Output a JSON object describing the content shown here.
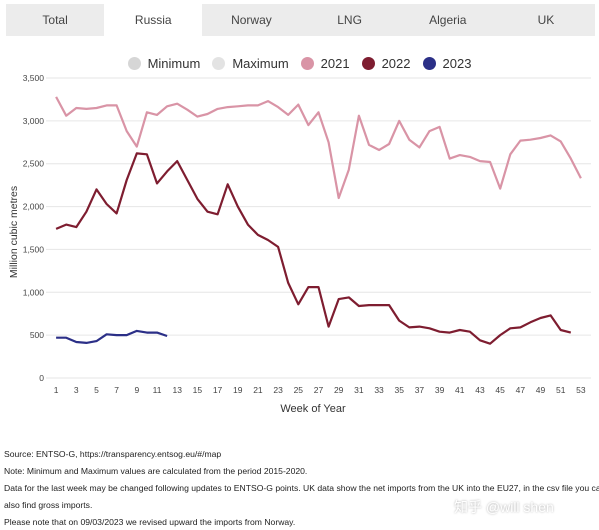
{
  "tabs": [
    {
      "label": "Total",
      "active": false
    },
    {
      "label": "Russia",
      "active": true
    },
    {
      "label": "Norway",
      "active": false
    },
    {
      "label": "LNG",
      "active": false
    },
    {
      "label": "Algeria",
      "active": false
    },
    {
      "label": "UK",
      "active": false
    }
  ],
  "legend": [
    {
      "label": "Minimum",
      "color": "#d6d6d6"
    },
    {
      "label": "Maximum",
      "color": "#e3e3e3"
    },
    {
      "label": "2021",
      "color": "#d994a6"
    },
    {
      "label": "2022",
      "color": "#7e1d30"
    },
    {
      "label": "2023",
      "color": "#2b2f87"
    }
  ],
  "chart_data": {
    "type": "line",
    "xlabel": "Week of Year",
    "ylabel": "Million cubic metres",
    "ylim": [
      0,
      3500
    ],
    "xlim": [
      0,
      54
    ],
    "y_ticks": [
      0,
      500,
      1000,
      1500,
      2000,
      2500,
      3000,
      3500
    ],
    "y_tick_labels": [
      "0",
      "500",
      "1,000",
      "1,500",
      "2,000",
      "2,500",
      "3,000",
      "3,500"
    ],
    "x_ticks": [
      1,
      3,
      5,
      7,
      9,
      11,
      13,
      15,
      17,
      19,
      21,
      23,
      25,
      27,
      29,
      31,
      33,
      35,
      37,
      39,
      41,
      43,
      45,
      47,
      49,
      51,
      53
    ],
    "grid": true,
    "series": [
      {
        "name": "2021",
        "color": "#d994a6",
        "x": [
          1,
          2,
          3,
          4,
          5,
          6,
          7,
          8,
          9,
          10,
          11,
          12,
          13,
          14,
          15,
          16,
          17,
          18,
          19,
          20,
          21,
          22,
          23,
          24,
          25,
          26,
          27,
          28,
          29,
          30,
          31,
          32,
          33,
          34,
          35,
          36,
          37,
          38,
          39,
          40,
          41,
          42,
          43,
          44,
          45,
          46,
          47,
          48,
          49,
          50,
          51,
          52,
          53
        ],
        "values": [
          3280,
          3060,
          3150,
          3140,
          3150,
          3180,
          3180,
          2880,
          2700,
          3100,
          3070,
          3170,
          3200,
          3130,
          3050,
          3080,
          3140,
          3160,
          3170,
          3180,
          3180,
          3230,
          3160,
          3070,
          3190,
          2950,
          3100,
          2750,
          2100,
          2430,
          3060,
          2720,
          2660,
          2730,
          3000,
          2780,
          2690,
          2880,
          2930,
          2560,
          2600,
          2580,
          2530,
          2520,
          2210,
          2610,
          2770,
          2780,
          2800,
          2830,
          2760,
          2560,
          2330
        ]
      },
      {
        "name": "2022",
        "color": "#7e1d30",
        "x": [
          1,
          2,
          3,
          4,
          5,
          6,
          7,
          8,
          9,
          10,
          11,
          12,
          13,
          14,
          15,
          16,
          17,
          18,
          19,
          20,
          21,
          22,
          23,
          24,
          25,
          26,
          27,
          28,
          29,
          30,
          31,
          32,
          33,
          34,
          35,
          36,
          37,
          38,
          39,
          40,
          41,
          42,
          43,
          44,
          45,
          46,
          47,
          48,
          49,
          50,
          51,
          52
        ],
        "values": [
          1740,
          1790,
          1760,
          1940,
          2200,
          2030,
          1920,
          2310,
          2620,
          2610,
          2270,
          2410,
          2530,
          2310,
          2090,
          1940,
          1910,
          2260,
          2000,
          1790,
          1670,
          1610,
          1530,
          1110,
          860,
          1060,
          1060,
          600,
          920,
          940,
          840,
          850,
          850,
          850,
          670,
          590,
          600,
          580,
          540,
          530,
          560,
          540,
          440,
          400,
          500,
          580,
          590,
          650,
          700,
          730,
          560,
          530
        ]
      },
      {
        "name": "2023",
        "color": "#2b2f87",
        "x": [
          1,
          2,
          3,
          4,
          5,
          6,
          7,
          8,
          9,
          10,
          11,
          12
        ],
        "values": [
          470,
          470,
          420,
          410,
          430,
          510,
          500,
          500,
          550,
          530,
          530,
          490
        ]
      }
    ]
  },
  "footer": {
    "source": "Source: ENTSO-G,  https://transparency.entsog.eu/#/map",
    "note": "Note: Minimum and Maximum values are calculated from the period 2015-2020.",
    "data_line1": "Data for the last week may be changed following updates to ENTSO-G points. UK data show the net imports from the UK into the EU27, in the csv file you can",
    "data_line2": "also find gross imports.",
    "revision": "Please note that on 09/03/2023 we revised upward the imports from Norway."
  },
  "watermark": "知乎 @will shen"
}
